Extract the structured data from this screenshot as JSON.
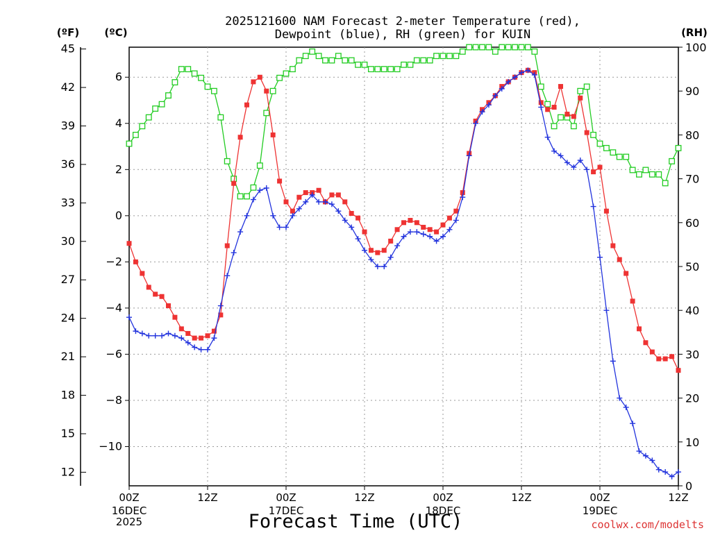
{
  "title_line1": "2025121600 NAM Forecast 2-meter Temperature (red),",
  "title_line2": "Dewpoint (blue), RH (green) for KUIN",
  "left_unit_f": "(ºF)",
  "left_unit_c": "(ºC)",
  "right_unit": "(RH)",
  "xlabel": "Forecast Time (UTC)",
  "credit": "coolwx.com/modelts",
  "colors": {
    "temp": "#ee3333",
    "dew": "#2233dd",
    "rh": "#22cc22",
    "grid": "#999999"
  },
  "chart_data": {
    "type": "line",
    "title": "2025121600 NAM Forecast 2-meter Temperature (red), Dewpoint (blue), RH (green) for KUIN",
    "xlabel": "Forecast Time (UTC)",
    "x_unit": "forecast hour from 2025-12-16 00Z",
    "x_range": [
      0,
      84
    ],
    "x_ticks": [
      {
        "hour": 0,
        "label": "00Z",
        "sub": [
          "16DEC",
          "2025"
        ]
      },
      {
        "hour": 12,
        "label": "12Z",
        "sub": []
      },
      {
        "hour": 24,
        "label": "00Z",
        "sub": [
          "17DEC"
        ]
      },
      {
        "hour": 36,
        "label": "12Z",
        "sub": []
      },
      {
        "hour": 48,
        "label": "00Z",
        "sub": [
          "18DEC"
        ]
      },
      {
        "hour": 60,
        "label": "12Z",
        "sub": []
      },
      {
        "hour": 72,
        "label": "00Z",
        "sub": [
          "19DEC"
        ]
      },
      {
        "hour": 84,
        "label": "12Z",
        "sub": []
      }
    ],
    "y_celsius": {
      "range": [
        -11.7,
        7.3
      ],
      "ticks": [
        -10,
        -8,
        -6,
        -4,
        -2,
        0,
        2,
        4,
        6
      ]
    },
    "y_fahrenheit": {
      "ticks": [
        12,
        15,
        18,
        21,
        24,
        27,
        30,
        33,
        36,
        39,
        42,
        45
      ]
    },
    "y_rh": {
      "range": [
        0,
        100
      ],
      "ticks": [
        0,
        10,
        20,
        30,
        40,
        50,
        60,
        70,
        80,
        90,
        100
      ]
    },
    "grid": true,
    "series": [
      {
        "name": "Temperature",
        "unit": "C",
        "values": [
          -1.2,
          -2.0,
          -2.5,
          -3.1,
          -3.4,
          -3.5,
          -3.9,
          -4.4,
          -4.9,
          -5.1,
          -5.3,
          -5.3,
          -5.2,
          -5.0,
          -4.3,
          -1.3,
          1.4,
          3.4,
          4.8,
          5.8,
          6.0,
          5.4,
          3.5,
          1.5,
          0.6,
          0.2,
          0.8,
          1.0,
          1.0,
          1.1,
          0.6,
          0.9,
          0.9,
          0.6,
          0.1,
          -0.1,
          -0.7,
          -1.5,
          -1.6,
          -1.5,
          -1.1,
          -0.6,
          -0.3,
          -0.2,
          -0.3,
          -0.5,
          -0.6,
          -0.7,
          -0.4,
          -0.1,
          0.2,
          1.0,
          2.7,
          4.1,
          4.6,
          4.9,
          5.2,
          5.6,
          5.8,
          6.0,
          6.2,
          6.3,
          6.2,
          4.9,
          4.6,
          4.7,
          5.6,
          4.4,
          4.3,
          5.1,
          3.6,
          1.9,
          2.1,
          0.2,
          -1.3,
          -1.9,
          -2.5,
          -3.7,
          -4.9,
          -5.5,
          -5.9,
          -6.2,
          -6.2,
          -6.1,
          -6.7
        ]
      },
      {
        "name": "Dewpoint",
        "unit": "C",
        "values": [
          -4.4,
          -5.0,
          -5.1,
          -5.2,
          -5.2,
          -5.2,
          -5.1,
          -5.2,
          -5.3,
          -5.5,
          -5.7,
          -5.8,
          -5.8,
          -5.3,
          -3.9,
          -2.6,
          -1.6,
          -0.7,
          0.0,
          0.7,
          1.1,
          1.2,
          0.0,
          -0.5,
          -0.5,
          0.0,
          0.3,
          0.6,
          0.9,
          0.6,
          0.6,
          0.5,
          0.2,
          -0.2,
          -0.5,
          -1.0,
          -1.5,
          -1.9,
          -2.2,
          -2.2,
          -1.8,
          -1.3,
          -0.9,
          -0.7,
          -0.7,
          -0.8,
          -0.9,
          -1.1,
          -0.9,
          -0.6,
          -0.2,
          0.8,
          2.6,
          4.0,
          4.5,
          4.8,
          5.2,
          5.5,
          5.8,
          6.0,
          6.2,
          6.3,
          6.1,
          4.7,
          3.4,
          2.8,
          2.6,
          2.3,
          2.1,
          2.4,
          2.0,
          0.4,
          -1.8,
          -4.1,
          -6.3,
          -7.9,
          -8.3,
          -9.0,
          -10.2,
          -10.4,
          -10.6,
          -11.0,
          -11.1,
          -11.3,
          -11.1
        ]
      },
      {
        "name": "RH",
        "unit": "%",
        "values": [
          78,
          80,
          82,
          84,
          86,
          87,
          89,
          92,
          95,
          95,
          94,
          93,
          91,
          90,
          84,
          74,
          70,
          66,
          66,
          68,
          73,
          85,
          90,
          93,
          94,
          95,
          97,
          98,
          99,
          98,
          97,
          97,
          98,
          97,
          97,
          96,
          96,
          95,
          95,
          95,
          95,
          95,
          96,
          96,
          97,
          97,
          97,
          98,
          98,
          98,
          98,
          99,
          100,
          100,
          100,
          100,
          99,
          100,
          100,
          100,
          100,
          100,
          99,
          91,
          87,
          82,
          84,
          84,
          82,
          90,
          91,
          80,
          78,
          77,
          76,
          75,
          75,
          72,
          71,
          72,
          71,
          71,
          69,
          74,
          77
        ]
      }
    ]
  }
}
